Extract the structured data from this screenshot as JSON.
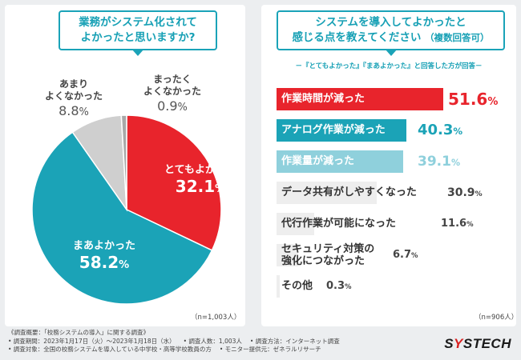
{
  "left": {
    "title_line1": "業務がシステム化されて",
    "title_line2": "よかったと思いますか?",
    "n_note": "（n=1,003人）"
  },
  "right": {
    "title_line1": "システムを導入してよかったと",
    "title_line2_main": "感じる点を教えてください",
    "title_line2_small": "（複数回答可）",
    "sub_note": "－『とてもよかった』『まあよかった』と回答した方が回答－",
    "n_note": "（n=906人）"
  },
  "chart_data": [
    {
      "type": "pie",
      "title": "業務がシステム化されてよかったと思いますか?",
      "slices": [
        {
          "label": "とてもよかった",
          "value": 32.1,
          "color": "#e8242c"
        },
        {
          "label": "まあよかった",
          "value": 58.2,
          "color": "#1ba3b7"
        },
        {
          "label": "あまりよくなかった",
          "value": 8.8,
          "color": "#cfcfcf"
        },
        {
          "label": "まったくよくなかった",
          "value": 0.9,
          "color": "#a8a8a8"
        }
      ],
      "unit": "%"
    },
    {
      "type": "bar",
      "title": "システムを導入してよかったと感じる点を教えてください（複数回答可）",
      "categories": [
        "作業時間が減った",
        "アナログ作業が減った",
        "作業量が減った",
        "データ共有がしやすくなった",
        "代行作業が可能になった",
        "セキュリティ対策の強化につながった",
        "その他"
      ],
      "values": [
        51.6,
        40.3,
        39.1,
        30.9,
        11.6,
        6.7,
        0.3
      ],
      "unit": "%",
      "colors": [
        "#e8242c",
        "#1ba3b7",
        "#8fd0dc",
        "#eeeeee",
        "#eeeeee",
        "#eeeeee",
        "#eeeeee"
      ]
    }
  ],
  "pie_labels": {
    "s0": {
      "label": "とてもよかった",
      "value": "32.1",
      "unit": "%"
    },
    "s1": {
      "label": "まあよかった",
      "value": "58.2",
      "unit": "%"
    },
    "s2": {
      "label_line1": "あまり",
      "label_line2": "よくなかった",
      "value": "8.8",
      "unit": "%"
    },
    "s3": {
      "label_line1": "まったく",
      "label_line2": "よくなかった",
      "value": "0.9",
      "unit": "%"
    }
  },
  "bar_labels": [
    {
      "line1": "作業時間が減った",
      "value": "51.6",
      "unit": "%"
    },
    {
      "line1": "アナログ作業が減った",
      "value": "40.3",
      "unit": "%"
    },
    {
      "line1": "作業量が減った",
      "value": "39.1",
      "unit": "%"
    },
    {
      "line1": "データ共有がしやすくなった",
      "value": "30.9",
      "unit": "%"
    },
    {
      "line1": "代行作業が可能になった",
      "value": "11.6",
      "unit": "%"
    },
    {
      "line1": "セキュリティ対策の",
      "line2": "強化につながった",
      "value": "6.7",
      "unit": "%"
    },
    {
      "line1": "その他",
      "value": "0.3",
      "unit": "%"
    }
  ],
  "footer": {
    "heading": "《調査概要：「校務システムの導入」に関する調査》",
    "period": "• 調査期間：2023年1月17日（火）～2023年1月18日（水）",
    "count": "• 調査人数：1,003人",
    "method": "• 調査方法：インターネット調査",
    "target": "• 調査対象：全国の校務システムを導入している中学校・高等学校教員の方",
    "provider": "• モニター提供元：ゼネラルリサーチ"
  },
  "brand": {
    "part1": "S",
    "accent": "Y",
    "part2": "STECH"
  }
}
